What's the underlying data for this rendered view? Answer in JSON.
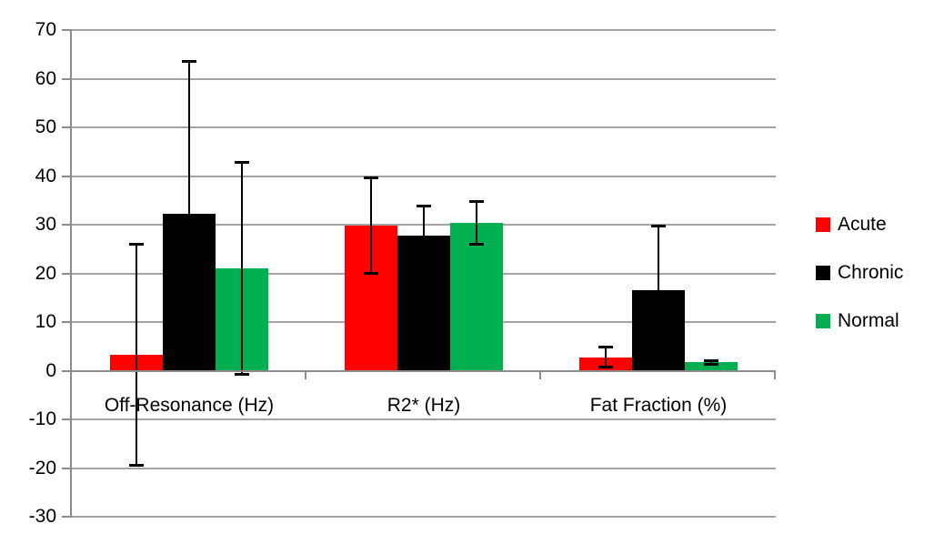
{
  "chart_data": {
    "type": "bar",
    "title": "",
    "xlabel": "",
    "ylabel": "",
    "categories": [
      "Off-Resonance (Hz)",
      "R2* (Hz)",
      "Fat Fraction (%)"
    ],
    "series": [
      {
        "name": "Acute",
        "color": "#ff0000",
        "values": [
          3.2,
          29.8,
          2.8
        ],
        "errors": [
          22.8,
          9.9,
          2.1
        ]
      },
      {
        "name": "Chronic",
        "color": "#000000",
        "values": [
          32.2,
          27.7,
          16.5
        ],
        "errors": [
          31.4,
          6.2,
          13.3
        ]
      },
      {
        "name": "Normal",
        "color": "#00b050",
        "values": [
          21.0,
          30.3,
          1.7
        ],
        "errors": [
          21.9,
          4.5,
          0.5
        ]
      }
    ],
    "ylim": [
      -30,
      70
    ],
    "yticks": [
      70,
      60,
      50,
      40,
      30,
      20,
      10,
      0,
      -10,
      -20,
      -30
    ],
    "grid": true,
    "legend_position": "right",
    "error_bars": "symmetric-black-caps",
    "gridline_color": "#a3a3a3",
    "axis_color": "#8c8c8c",
    "error_bar_color": "#000000",
    "background_color": "#ffffff",
    "text_color": "#000000"
  }
}
